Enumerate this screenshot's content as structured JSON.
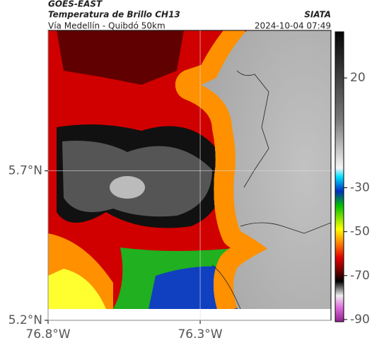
{
  "header": {
    "source": "GOES-EAST",
    "product": "Temperatura de Brillo CH13",
    "route": "Vía Medellín - Quibdó 50km",
    "org": "SIATA",
    "timestamp": "2024-10-04 07:49"
  },
  "map": {
    "xlim": [
      -76.8,
      -75.87
    ],
    "ylim": [
      5.2,
      6.17
    ],
    "xticks": [
      {
        "value": -76.8,
        "label": "76.8°W"
      },
      {
        "value": -76.3,
        "label": "76.3°W"
      }
    ],
    "yticks": [
      {
        "value": 5.2,
        "label": "5.2°N"
      },
      {
        "value": 5.7,
        "label": "5.7°N"
      }
    ],
    "grid": true
  },
  "colorbar": {
    "lim": [
      -91,
      41
    ],
    "ticks": [
      20,
      -30,
      -50,
      -70,
      -90
    ]
  }
}
